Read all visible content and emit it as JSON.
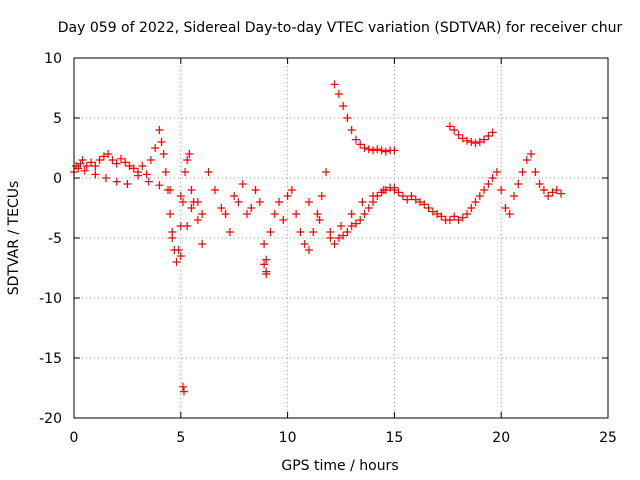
{
  "chart_data": {
    "type": "scatter",
    "title": "Day 059 of 2022, Sidereal Day-to-day VTEC variation (SDTVAR) for receiver chur",
    "xlabel": "GPS time / hours",
    "ylabel": "SDTVAR / TECUs",
    "xlim": [
      0,
      25
    ],
    "ylim": [
      -20,
      10
    ],
    "xticks": [
      "0",
      "5",
      "10",
      "15",
      "20",
      "25"
    ],
    "yticks": [
      "-20",
      "-15",
      "-10",
      "-5",
      "0",
      "5",
      "10"
    ],
    "grid": true,
    "marker": "+",
    "series": [
      {
        "name": "SDTVAR",
        "color": "#ff0000",
        "x": [
          0.0,
          0.1,
          0.2,
          0.3,
          0.4,
          0.5,
          0.6,
          0.8,
          1.0,
          1.2,
          1.4,
          1.6,
          1.8,
          2.0,
          2.2,
          2.4,
          2.6,
          2.8,
          3.0,
          3.2,
          3.4,
          3.6,
          3.8,
          4.0,
          4.1,
          4.2,
          4.3,
          4.4,
          4.5,
          4.6,
          4.7,
          4.8,
          4.9,
          5.0,
          5.1,
          5.2,
          5.3,
          5.4,
          5.5,
          5.6,
          5.8,
          6.0,
          6.3,
          6.6,
          6.9,
          7.1,
          7.3,
          7.5,
          7.7,
          7.9,
          8.1,
          8.3,
          8.5,
          8.7,
          8.9,
          9.0,
          9.2,
          9.4,
          9.6,
          9.8,
          10.0,
          10.2,
          10.4,
          10.6,
          10.8,
          11.0,
          11.2,
          11.4,
          11.6,
          11.8,
          12.0,
          12.2,
          12.4,
          12.6,
          12.8,
          13.0,
          13.2,
          13.4,
          13.6,
          13.8,
          14.0,
          14.2,
          14.4,
          14.6,
          14.8,
          15.0,
          15.2,
          15.4,
          15.6,
          15.8,
          16.0,
          16.2,
          16.4,
          16.6,
          16.8,
          17.0,
          17.2,
          17.4,
          17.6,
          17.8,
          18.0,
          18.2,
          18.4,
          18.6,
          18.8,
          19.0,
          19.2,
          19.4,
          19.6,
          19.8,
          20.0,
          20.2,
          20.4,
          20.6,
          20.8,
          21.0,
          21.2,
          21.4,
          21.6,
          21.8,
          22.0,
          22.2,
          22.4,
          22.6,
          22.8,
          1.0,
          1.5,
          2.0,
          2.5,
          3.0,
          3.5,
          4.0,
          4.5,
          5.0,
          5.5,
          6.0,
          12.2,
          12.4,
          12.6,
          12.8,
          13.0,
          13.2,
          13.4,
          13.6,
          13.8,
          14.0,
          14.2,
          14.4,
          14.6,
          14.8,
          15.0,
          17.6,
          17.8,
          18.0,
          18.2,
          18.4,
          18.6,
          18.8,
          19.0,
          19.2,
          19.4,
          19.6,
          11.0,
          11.5,
          12.0,
          12.5,
          13.0,
          13.5,
          14.0,
          14.5,
          15.0,
          4.6,
          5.0,
          5.3,
          5.8,
          8.9,
          9.0,
          9.0,
          5.1,
          5.15
        ],
        "y": [
          0.5,
          1.0,
          0.8,
          1.2,
          1.5,
          0.6,
          1.0,
          1.3,
          1.0,
          1.5,
          1.8,
          2.0,
          1.5,
          1.2,
          1.6,
          1.3,
          1.0,
          0.8,
          0.5,
          1.0,
          0.3,
          1.5,
          2.5,
          4.0,
          3.0,
          2.0,
          0.5,
          -1.0,
          -3.0,
          -5.0,
          -6.0,
          -7.0,
          -6.0,
          -4.0,
          -2.0,
          0.5,
          1.5,
          2.0,
          -1.0,
          -2.0,
          -3.5,
          -5.5,
          0.5,
          -1.0,
          -2.5,
          -3.0,
          -4.5,
          -1.5,
          -2.0,
          -0.5,
          -3.0,
          -2.5,
          -1.0,
          -2.0,
          -5.5,
          -8.0,
          -4.5,
          -3.0,
          -2.0,
          -3.5,
          -1.5,
          -1.0,
          -3.0,
          -4.5,
          -5.5,
          -6.0,
          -4.5,
          -3.0,
          -1.5,
          0.5,
          -5.0,
          -5.5,
          -5.0,
          -4.8,
          -4.5,
          -4.0,
          -3.8,
          -3.5,
          -3.0,
          -2.5,
          -2.0,
          -1.5,
          -1.2,
          -1.0,
          -0.8,
          -1.0,
          -1.2,
          -1.5,
          -1.8,
          -1.5,
          -1.8,
          -2.0,
          -2.2,
          -2.5,
          -2.8,
          -3.0,
          -3.2,
          -3.5,
          -3.5,
          -3.2,
          -3.5,
          -3.3,
          -3.0,
          -2.5,
          -2.0,
          -1.5,
          -1.0,
          -0.5,
          0.0,
          0.5,
          -1.0,
          -2.5,
          -3.0,
          -1.5,
          -0.5,
          0.5,
          1.5,
          2.0,
          0.5,
          -0.5,
          -1.0,
          -1.5,
          -1.2,
          -1.0,
          -1.3,
          0.3,
          0.0,
          -0.3,
          -0.5,
          0.2,
          -0.3,
          -0.6,
          -1.0,
          -1.5,
          -2.5,
          -3.0,
          7.8,
          7.0,
          6.0,
          5.0,
          4.0,
          3.2,
          2.8,
          2.5,
          2.4,
          2.3,
          2.4,
          2.3,
          2.2,
          2.3,
          2.3,
          4.3,
          4.0,
          3.6,
          3.3,
          3.1,
          3.0,
          2.9,
          3.0,
          3.2,
          3.5,
          3.8,
          -2.0,
          -3.5,
          -4.5,
          -4.0,
          -3.0,
          -2.0,
          -1.5,
          -1.0,
          -0.8,
          -4.5,
          -6.5,
          -4.0,
          -2.0,
          -7.2,
          -7.8,
          -6.8,
          -17.4,
          -17.8
        ]
      }
    ]
  }
}
